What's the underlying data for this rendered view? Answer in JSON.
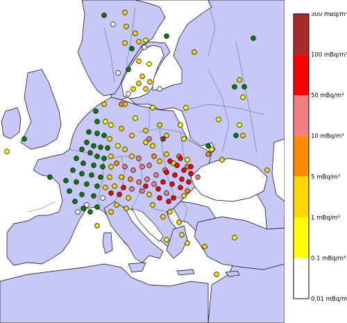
{
  "legend": {
    "classes": [
      {
        "label": "300 mBq/m³",
        "color": "#a52a2a"
      },
      {
        "label": "100 mBq/m³",
        "color": "#ff0000"
      },
      {
        "label": "50 mBq/m³",
        "color": "#f08080"
      },
      {
        "label": "10 mBq/m³",
        "color": "#ff8c00"
      },
      {
        "label": "5 mBq/m³",
        "color": "#ffd700"
      },
      {
        "label": "1 mBq/m³",
        "color": "#ffff00"
      },
      {
        "label": "0.1 mBq/m³",
        "color": "#ffffff"
      },
      {
        "label": "0.01 mBq/m³",
        "color": null
      }
    ]
  },
  "colors": {
    "land": "#c8c8f8",
    "sea": "#ffffff",
    "border": "#000000",
    "station_low": "#008000",
    "station_white": "#ffffff",
    "station_yellow": "#ffff00",
    "station_gold": "#ffd700",
    "station_orange": "#ff8c00",
    "station_salmon": "#f08080",
    "station_red": "#ff0000",
    "station_darkred": "#a52a2a"
  }
}
